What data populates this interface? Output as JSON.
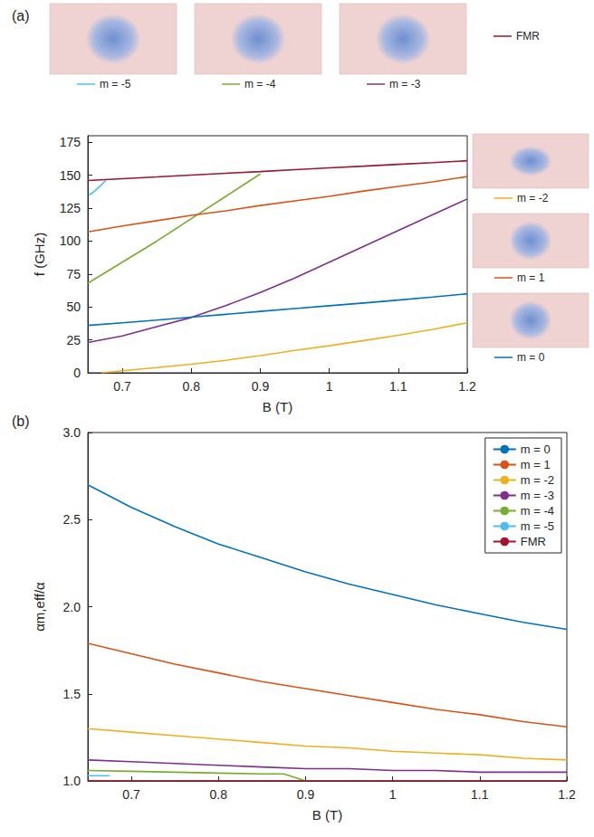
{
  "chart_data": [
    {
      "type": "line",
      "title": "(a)",
      "x_label": "B (T)",
      "y_label": "f (GHz)",
      "xlim": [
        0.65,
        1.2
      ],
      "xticks": [
        0.7,
        0.8,
        0.9,
        1.0,
        1.1,
        1.2
      ],
      "ylim": [
        0,
        180
      ],
      "yticks": [
        0,
        25,
        50,
        75,
        100,
        125,
        150,
        175
      ],
      "grid": false,
      "series": [
        {
          "name": "m = -5",
          "color": "#4dbeee",
          "x": [
            0.652,
            0.66,
            0.668,
            0.676
          ],
          "values": [
            135,
            138,
            142,
            146
          ]
        },
        {
          "name": "m = -4",
          "color": "#77ac30",
          "x": [
            0.65,
            0.7,
            0.75,
            0.8,
            0.85,
            0.9
          ],
          "values": [
            68,
            84,
            100,
            117,
            134,
            151
          ]
        },
        {
          "name": "m = -3",
          "color": "#7e2f8e",
          "x": [
            0.65,
            0.7,
            0.75,
            0.8,
            0.85,
            0.9,
            0.95,
            1.0,
            1.05,
            1.1,
            1.15,
            1.2
          ],
          "values": [
            23,
            28,
            35,
            42,
            51,
            61,
            72,
            84,
            96,
            108,
            120,
            132
          ]
        },
        {
          "name": "FMR",
          "color": "#a2142f",
          "x": [
            0.65,
            0.7,
            0.75,
            0.8,
            0.85,
            0.9,
            0.95,
            1.0,
            1.05,
            1.1,
            1.15,
            1.2
          ],
          "values": [
            146,
            147.4,
            148.7,
            150.1,
            151.5,
            152.8,
            154.2,
            155.6,
            156.9,
            158.3,
            159.6,
            161
          ]
        },
        {
          "name": "m = -2",
          "color": "#edb120",
          "x": [
            0.67,
            0.7,
            0.75,
            0.8,
            0.85,
            0.9,
            0.95,
            1.0,
            1.05,
            1.1,
            1.15,
            1.2
          ],
          "values": [
            0,
            1.5,
            4,
            6.5,
            9.5,
            13,
            17,
            20.5,
            24.5,
            28.5,
            33,
            38
          ]
        },
        {
          "name": "m = 1",
          "color": "#d95319",
          "x": [
            0.65,
            0.7,
            0.75,
            0.8,
            0.85,
            0.9,
            0.95,
            1.0,
            1.05,
            1.1,
            1.15,
            1.2
          ],
          "values": [
            107,
            111.5,
            115.5,
            119.5,
            123,
            127,
            130.5,
            134,
            138,
            141.5,
            145,
            149
          ]
        },
        {
          "name": "m = 0",
          "color": "#0072bd",
          "x": [
            0.65,
            0.7,
            0.75,
            0.8,
            0.85,
            0.9,
            0.95,
            1.0,
            1.05,
            1.1,
            1.15,
            1.2
          ],
          "values": [
            36,
            38,
            40,
            42.2,
            44.4,
            46.6,
            48.8,
            50.9,
            53,
            55.2,
            57.5,
            60
          ]
        }
      ]
    },
    {
      "type": "line",
      "title": "(b)",
      "x_label": "B (T)",
      "y_label": "αm,eff/α",
      "xlim": [
        0.65,
        1.2
      ],
      "xticks": [
        0.7,
        0.8,
        0.9,
        1.0,
        1.1,
        1.2
      ],
      "ylim": [
        1,
        3
      ],
      "yticks": [
        {
          "value": 1,
          "label": "1.0"
        },
        {
          "value": 1.5,
          "label": "1.5"
        },
        {
          "value": 2,
          "label": "2.0"
        },
        {
          "value": 2.5,
          "label": "2.5"
        },
        {
          "value": 3,
          "label": "3.0"
        }
      ],
      "grid": false,
      "legend": "upper right",
      "series": [
        {
          "name": "m = 0",
          "color": "#0072bd",
          "x": [
            0.65,
            0.7,
            0.75,
            0.8,
            0.85,
            0.9,
            0.95,
            1.0,
            1.05,
            1.1,
            1.15,
            1.2
          ],
          "values": [
            2.7,
            2.57,
            2.46,
            2.36,
            2.28,
            2.2,
            2.13,
            2.07,
            2.01,
            1.96,
            1.91,
            1.87
          ]
        },
        {
          "name": "m = 1",
          "color": "#d95319",
          "x": [
            0.65,
            0.7,
            0.75,
            0.8,
            0.85,
            0.9,
            0.95,
            1.0,
            1.05,
            1.1,
            1.15,
            1.2
          ],
          "values": [
            1.79,
            1.73,
            1.67,
            1.62,
            1.57,
            1.53,
            1.49,
            1.45,
            1.41,
            1.38,
            1.34,
            1.31
          ]
        },
        {
          "name": "m = -2",
          "color": "#edb120",
          "x": [
            0.65,
            0.7,
            0.75,
            0.8,
            0.85,
            0.9,
            0.95,
            1.0,
            1.05,
            1.1,
            1.15,
            1.2
          ],
          "values": [
            1.3,
            1.28,
            1.26,
            1.24,
            1.22,
            1.2,
            1.19,
            1.17,
            1.16,
            1.15,
            1.13,
            1.12
          ]
        },
        {
          "name": "m = -3",
          "color": "#7e2f8e",
          "x": [
            0.65,
            0.7,
            0.75,
            0.8,
            0.85,
            0.9,
            0.95,
            1.0,
            1.05,
            1.1,
            1.15,
            1.2
          ],
          "values": [
            1.12,
            1.11,
            1.1,
            1.09,
            1.08,
            1.07,
            1.07,
            1.06,
            1.06,
            1.05,
            1.05,
            1.05
          ]
        },
        {
          "name": "m = -4",
          "color": "#77ac30",
          "x": [
            0.65,
            0.7,
            0.75,
            0.8,
            0.85,
            0.875,
            0.9
          ],
          "values": [
            1.06,
            1.055,
            1.05,
            1.045,
            1.04,
            1.04,
            1.0
          ]
        },
        {
          "name": "m = -5",
          "color": "#4dbeee",
          "x": [
            0.65,
            0.675
          ],
          "values": [
            1.03,
            1.03
          ]
        },
        {
          "name": "FMR",
          "color": "#a2142f",
          "x": [
            0.65,
            0.7,
            0.75,
            0.8,
            0.85,
            0.9,
            0.95,
            1.0,
            1.05,
            1.1,
            1.15,
            1.2
          ],
          "values": [
            1,
            1,
            1,
            1,
            1,
            1,
            1,
            1,
            1,
            1,
            1,
            1
          ]
        }
      ]
    }
  ]
}
